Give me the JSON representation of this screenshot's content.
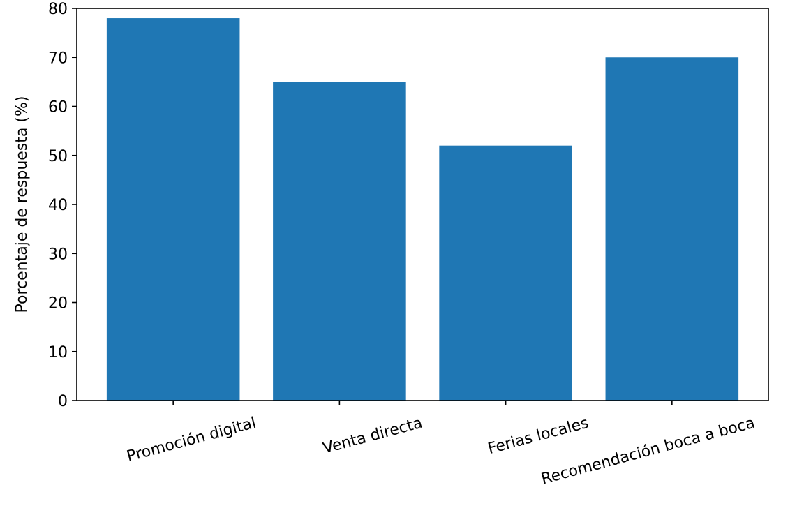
{
  "chart_data": {
    "type": "bar",
    "categories": [
      "Promoción digital",
      "Venta directa",
      "Ferias locales",
      "Recomendación boca a boca"
    ],
    "values": [
      78,
      65,
      52,
      70
    ],
    "title": "",
    "xlabel": "",
    "ylabel": "Porcentaje de respuesta (%)",
    "ylim": [
      0,
      80
    ],
    "yticks": [
      0,
      10,
      20,
      30,
      40,
      50,
      60,
      70,
      80
    ],
    "grid": false,
    "bar_color": "#1f77b4"
  }
}
